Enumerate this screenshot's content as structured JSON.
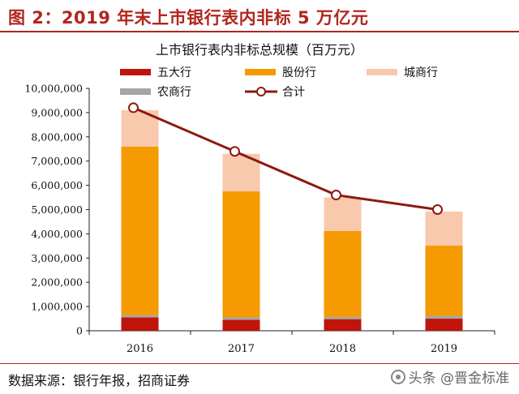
{
  "figure": {
    "title": "图 2：2019 年末上市银行表内非标 5 万亿元",
    "source": "数据来源：银行年报，招商证券",
    "watermark": "头条 @晋金标准"
  },
  "chart_data": {
    "type": "bar",
    "stacked": true,
    "title": "上市银行表内非标总规模（百万元）",
    "xlabel": "",
    "ylabel": "",
    "categories": [
      "2016",
      "2017",
      "2018",
      "2019"
    ],
    "ylim": [
      0,
      10000000
    ],
    "yticks": [
      0,
      1000000,
      2000000,
      3000000,
      4000000,
      5000000,
      6000000,
      7000000,
      8000000,
      9000000,
      10000000
    ],
    "ytick_labels": [
      "0",
      "1,000,000",
      "2,000,000",
      "3,000,000",
      "4,000,000",
      "5,000,000",
      "6,000,000",
      "7,000,000",
      "8,000,000",
      "9,000,000",
      "10,000,000"
    ],
    "series": [
      {
        "name": "五大行",
        "type": "bar",
        "color": "#c0140c",
        "values": [
          550000,
          450000,
          480000,
          500000
        ]
      },
      {
        "name": "股份行",
        "type": "bar",
        "color": "#f59a00",
        "values": [
          6950000,
          5200000,
          3550000,
          2900000
        ]
      },
      {
        "name": "城商行",
        "type": "bar",
        "color": "#f8c9ad",
        "values": [
          1500000,
          1550000,
          1380000,
          1400000
        ]
      },
      {
        "name": "农商行",
        "type": "bar",
        "color": "#a6a6a6",
        "values": [
          100000,
          100000,
          90000,
          120000
        ]
      },
      {
        "name": "合计",
        "type": "line",
        "color": "#8b1a10",
        "values": [
          9200000,
          7400000,
          5600000,
          5000000
        ]
      }
    ],
    "legend_position": "top",
    "grid": false
  }
}
